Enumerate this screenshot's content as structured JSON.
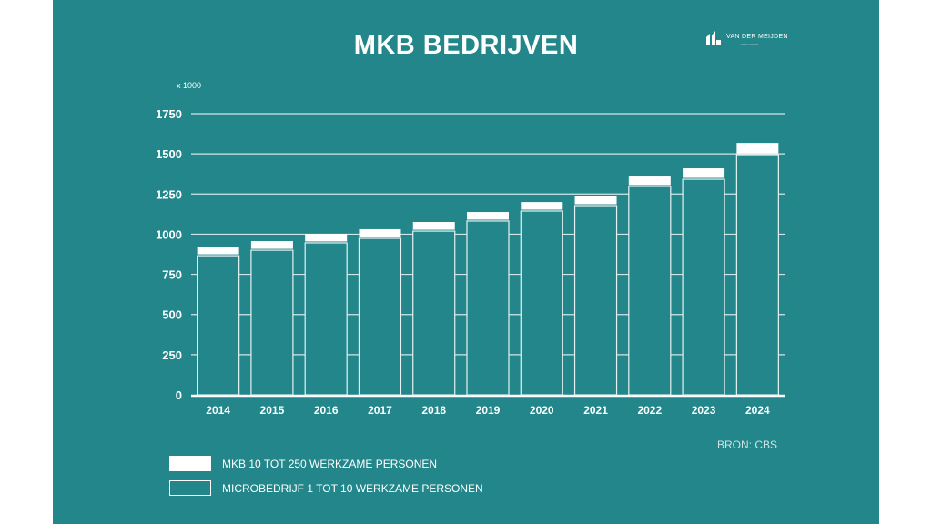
{
  "chart_data": {
    "type": "bar",
    "stacked": true,
    "title": "MKB BEDRIJVEN",
    "unit_label": "x 1000",
    "categories": [
      "2014",
      "2015",
      "2016",
      "2017",
      "2018",
      "2019",
      "2020",
      "2021",
      "2022",
      "2023",
      "2024"
    ],
    "series": [
      {
        "name": "MICROBEDRIJF 1 TOT 10 WERKZAME PERSONEN",
        "values": [
          866,
          900,
          946,
          974,
          1019,
          1082,
          1144,
          1178,
          1297,
          1342,
          1495
        ],
        "color": "#23868a"
      },
      {
        "name": "MKB 10 TOT 250 WERKZAME PERSONEN",
        "values": [
          57,
          57,
          56,
          57,
          57,
          56,
          56,
          62,
          62,
          68,
          73
        ],
        "color": "#ffffff"
      }
    ],
    "yticks": [
      0,
      250,
      500,
      750,
      1000,
      1250,
      1500,
      1750
    ],
    "ylim": [
      0,
      1750
    ],
    "grid": true,
    "legend": "bottom-left",
    "source": "BRON: CBS"
  },
  "logo": {
    "name": "VAN DER MEIJDEN",
    "sub": "FISCALISTEN"
  },
  "colors": {
    "background": "#23868a",
    "bar_top": "#ffffff",
    "lines": "#d8ecec"
  }
}
